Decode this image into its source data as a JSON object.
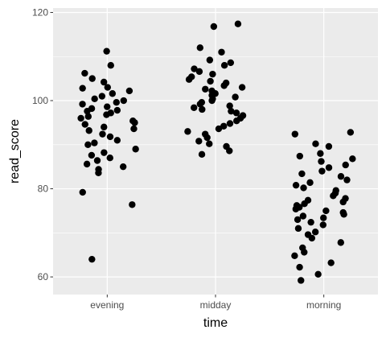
{
  "chart_data": {
    "type": "scatter",
    "jitter": true,
    "xlabel": "time",
    "ylabel": "read_score",
    "categories": [
      "evening",
      "midday",
      "morning"
    ],
    "ylim": [
      56,
      121
    ],
    "yticks": [
      60,
      80,
      100,
      120
    ],
    "grid": true,
    "background": "#ebebeb",
    "gridline_color": "#ffffff",
    "point_color": "#000000",
    "points": [
      {
        "x": "evening",
        "y": 111.2
      },
      {
        "x": "evening",
        "y": 108.0
      },
      {
        "x": "evening",
        "y": 106.2
      },
      {
        "x": "evening",
        "y": 105.0
      },
      {
        "x": "evening",
        "y": 104.2
      },
      {
        "x": "evening",
        "y": 103.0
      },
      {
        "x": "evening",
        "y": 102.8
      },
      {
        "x": "evening",
        "y": 102.2
      },
      {
        "x": "evening",
        "y": 101.6
      },
      {
        "x": "evening",
        "y": 101.0
      },
      {
        "x": "evening",
        "y": 100.4
      },
      {
        "x": "evening",
        "y": 100.0
      },
      {
        "x": "evening",
        "y": 99.6
      },
      {
        "x": "evening",
        "y": 99.2
      },
      {
        "x": "evening",
        "y": 98.6
      },
      {
        "x": "evening",
        "y": 98.2
      },
      {
        "x": "evening",
        "y": 97.8
      },
      {
        "x": "evening",
        "y": 97.6
      },
      {
        "x": "evening",
        "y": 97.2
      },
      {
        "x": "evening",
        "y": 96.8
      },
      {
        "x": "evening",
        "y": 96.4
      },
      {
        "x": "evening",
        "y": 96.0
      },
      {
        "x": "evening",
        "y": 95.4
      },
      {
        "x": "evening",
        "y": 95.0
      },
      {
        "x": "evening",
        "y": 94.6
      },
      {
        "x": "evening",
        "y": 94.0
      },
      {
        "x": "evening",
        "y": 93.6
      },
      {
        "x": "evening",
        "y": 93.2
      },
      {
        "x": "evening",
        "y": 92.4
      },
      {
        "x": "evening",
        "y": 91.8
      },
      {
        "x": "evening",
        "y": 91.0
      },
      {
        "x": "evening",
        "y": 90.4
      },
      {
        "x": "evening",
        "y": 90.0
      },
      {
        "x": "evening",
        "y": 89.0
      },
      {
        "x": "evening",
        "y": 88.2
      },
      {
        "x": "evening",
        "y": 87.6
      },
      {
        "x": "evening",
        "y": 87.0
      },
      {
        "x": "evening",
        "y": 86.4
      },
      {
        "x": "evening",
        "y": 85.6
      },
      {
        "x": "evening",
        "y": 85.0
      },
      {
        "x": "evening",
        "y": 84.4
      },
      {
        "x": "evening",
        "y": 83.6
      },
      {
        "x": "evening",
        "y": 79.2
      },
      {
        "x": "evening",
        "y": 76.4
      },
      {
        "x": "evening",
        "y": 64.0
      },
      {
        "x": "midday",
        "y": 117.4
      },
      {
        "x": "midday",
        "y": 116.8
      },
      {
        "x": "midday",
        "y": 112.0
      },
      {
        "x": "midday",
        "y": 111.0
      },
      {
        "x": "midday",
        "y": 109.2
      },
      {
        "x": "midday",
        "y": 108.6
      },
      {
        "x": "midday",
        "y": 108.0
      },
      {
        "x": "midday",
        "y": 107.2
      },
      {
        "x": "midday",
        "y": 106.6
      },
      {
        "x": "midday",
        "y": 106.0
      },
      {
        "x": "midday",
        "y": 105.4
      },
      {
        "x": "midday",
        "y": 104.8
      },
      {
        "x": "midday",
        "y": 104.4
      },
      {
        "x": "midday",
        "y": 104.0
      },
      {
        "x": "midday",
        "y": 103.4
      },
      {
        "x": "midday",
        "y": 103.0
      },
      {
        "x": "midday",
        "y": 102.6
      },
      {
        "x": "midday",
        "y": 102.2
      },
      {
        "x": "midday",
        "y": 101.6
      },
      {
        "x": "midday",
        "y": 101.2
      },
      {
        "x": "midday",
        "y": 100.8
      },
      {
        "x": "midday",
        "y": 100.4
      },
      {
        "x": "midday",
        "y": 100.0
      },
      {
        "x": "midday",
        "y": 99.6
      },
      {
        "x": "midday",
        "y": 99.2
      },
      {
        "x": "midday",
        "y": 98.8
      },
      {
        "x": "midday",
        "y": 98.4
      },
      {
        "x": "midday",
        "y": 98.0
      },
      {
        "x": "midday",
        "y": 97.6
      },
      {
        "x": "midday",
        "y": 97.2
      },
      {
        "x": "midday",
        "y": 96.6
      },
      {
        "x": "midday",
        "y": 96.0
      },
      {
        "x": "midday",
        "y": 95.4
      },
      {
        "x": "midday",
        "y": 94.8
      },
      {
        "x": "midday",
        "y": 94.2
      },
      {
        "x": "midday",
        "y": 93.6
      },
      {
        "x": "midday",
        "y": 93.0
      },
      {
        "x": "midday",
        "y": 92.4
      },
      {
        "x": "midday",
        "y": 91.6
      },
      {
        "x": "midday",
        "y": 90.8
      },
      {
        "x": "midday",
        "y": 90.2
      },
      {
        "x": "midday",
        "y": 89.6
      },
      {
        "x": "midday",
        "y": 88.6
      },
      {
        "x": "midday",
        "y": 87.8
      },
      {
        "x": "morning",
        "y": 92.8
      },
      {
        "x": "morning",
        "y": 92.4
      },
      {
        "x": "morning",
        "y": 90.2
      },
      {
        "x": "morning",
        "y": 89.6
      },
      {
        "x": "morning",
        "y": 88.0
      },
      {
        "x": "morning",
        "y": 87.4
      },
      {
        "x": "morning",
        "y": 86.8
      },
      {
        "x": "morning",
        "y": 86.2
      },
      {
        "x": "morning",
        "y": 85.4
      },
      {
        "x": "morning",
        "y": 84.8
      },
      {
        "x": "morning",
        "y": 84.0
      },
      {
        "x": "morning",
        "y": 83.4
      },
      {
        "x": "morning",
        "y": 82.8
      },
      {
        "x": "morning",
        "y": 82.0
      },
      {
        "x": "morning",
        "y": 81.4
      },
      {
        "x": "morning",
        "y": 80.8
      },
      {
        "x": "morning",
        "y": 80.2
      },
      {
        "x": "morning",
        "y": 79.6
      },
      {
        "x": "morning",
        "y": 79.0
      },
      {
        "x": "morning",
        "y": 78.4
      },
      {
        "x": "morning",
        "y": 77.8
      },
      {
        "x": "morning",
        "y": 77.4
      },
      {
        "x": "morning",
        "y": 77.0
      },
      {
        "x": "morning",
        "y": 76.6
      },
      {
        "x": "morning",
        "y": 76.2
      },
      {
        "x": "morning",
        "y": 75.8
      },
      {
        "x": "morning",
        "y": 75.4
      },
      {
        "x": "morning",
        "y": 75.0
      },
      {
        "x": "morning",
        "y": 74.6
      },
      {
        "x": "morning",
        "y": 74.2
      },
      {
        "x": "morning",
        "y": 73.8
      },
      {
        "x": "morning",
        "y": 73.4
      },
      {
        "x": "morning",
        "y": 73.0
      },
      {
        "x": "morning",
        "y": 72.4
      },
      {
        "x": "morning",
        "y": 71.8
      },
      {
        "x": "morning",
        "y": 71.0
      },
      {
        "x": "morning",
        "y": 70.2
      },
      {
        "x": "morning",
        "y": 69.6
      },
      {
        "x": "morning",
        "y": 68.8
      },
      {
        "x": "morning",
        "y": 67.8
      },
      {
        "x": "morning",
        "y": 66.6
      },
      {
        "x": "morning",
        "y": 65.6
      },
      {
        "x": "morning",
        "y": 64.8
      },
      {
        "x": "morning",
        "y": 63.2
      },
      {
        "x": "morning",
        "y": 62.2
      },
      {
        "x": "morning",
        "y": 60.6
      },
      {
        "x": "morning",
        "y": 59.2
      }
    ]
  }
}
